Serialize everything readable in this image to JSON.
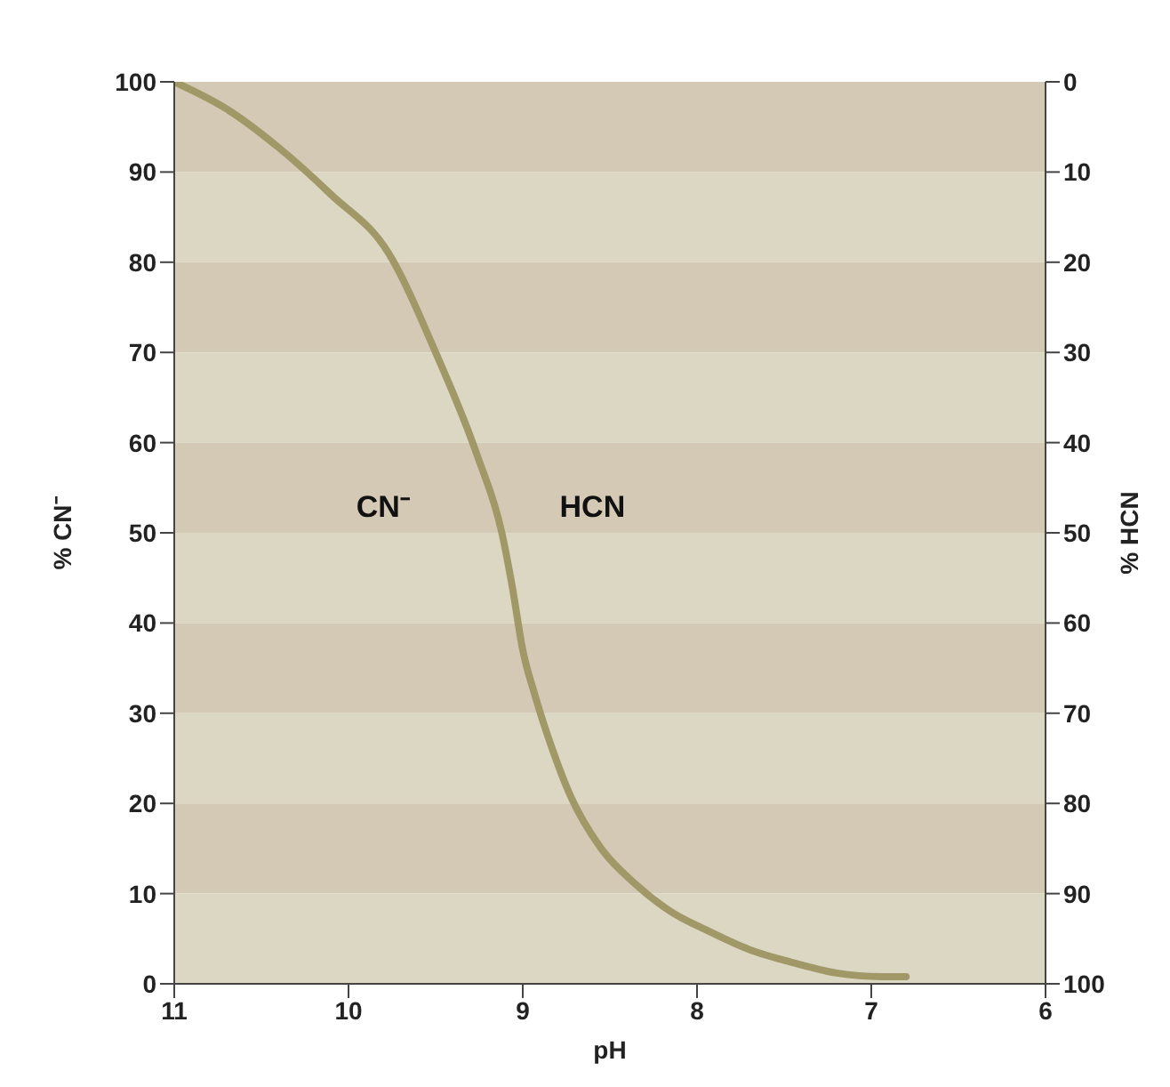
{
  "chart_data": {
    "type": "line",
    "xlabel": "pH",
    "ylabel": "% CN⁻",
    "y2label": "% HCN",
    "annotations": [
      "CN⁻",
      "HCN"
    ],
    "x": [
      11,
      10.7,
      10.4,
      10.1,
      9.77,
      9.5,
      9.26,
      9.12,
      9.06,
      9.0,
      8.93,
      8.83,
      8.73,
      8.55,
      8.35,
      8.15,
      7.95,
      7.7,
      7.44,
      7.2,
      6.94,
      6.8
    ],
    "series": [
      {
        "color": "#a19868",
        "values": [
          100,
          97,
          92.7,
          87.5,
          81,
          70,
          58.5,
          50,
          44,
          37,
          32,
          26,
          21,
          15,
          11,
          8,
          6,
          3.8,
          2.3,
          1.2,
          0.8,
          0.8
        ]
      }
    ],
    "xlim": [
      11,
      6
    ],
    "xticks": [
      11,
      10,
      9,
      8,
      7,
      6
    ],
    "ylim": [
      0,
      100
    ],
    "yticks": [
      0,
      10,
      20,
      30,
      40,
      50,
      60,
      70,
      80,
      90,
      100
    ],
    "y2lim": [
      100,
      0
    ],
    "y2ticks": [
      0,
      10,
      20,
      30,
      40,
      50,
      60,
      70,
      80,
      90,
      100
    ],
    "bands": [
      {
        "axis": "y",
        "from": 90,
        "to": 100,
        "color": "#d4c9b4"
      },
      {
        "axis": "y",
        "from": 80,
        "to": 90,
        "color": "#dcd7c3"
      },
      {
        "axis": "y",
        "from": 70,
        "to": 80,
        "color": "#d4c9b4"
      },
      {
        "axis": "y",
        "from": 60,
        "to": 70,
        "color": "#dcd7c3"
      },
      {
        "axis": "y",
        "from": 50,
        "to": 60,
        "color": "#d4c9b4"
      },
      {
        "axis": "y",
        "from": 40,
        "to": 50,
        "color": "#dcd7c3"
      },
      {
        "axis": "y",
        "from": 30,
        "to": 40,
        "color": "#d4c9b4"
      },
      {
        "axis": "y",
        "from": 20,
        "to": 30,
        "color": "#dcd7c3"
      },
      {
        "axis": "y",
        "from": 10,
        "to": 20,
        "color": "#d4c9b4"
      },
      {
        "axis": "y",
        "from": 0,
        "to": 10,
        "color": "#dcd7c3"
      }
    ],
    "grid": false,
    "legend": false,
    "marker": "none",
    "line_style": "solid"
  }
}
